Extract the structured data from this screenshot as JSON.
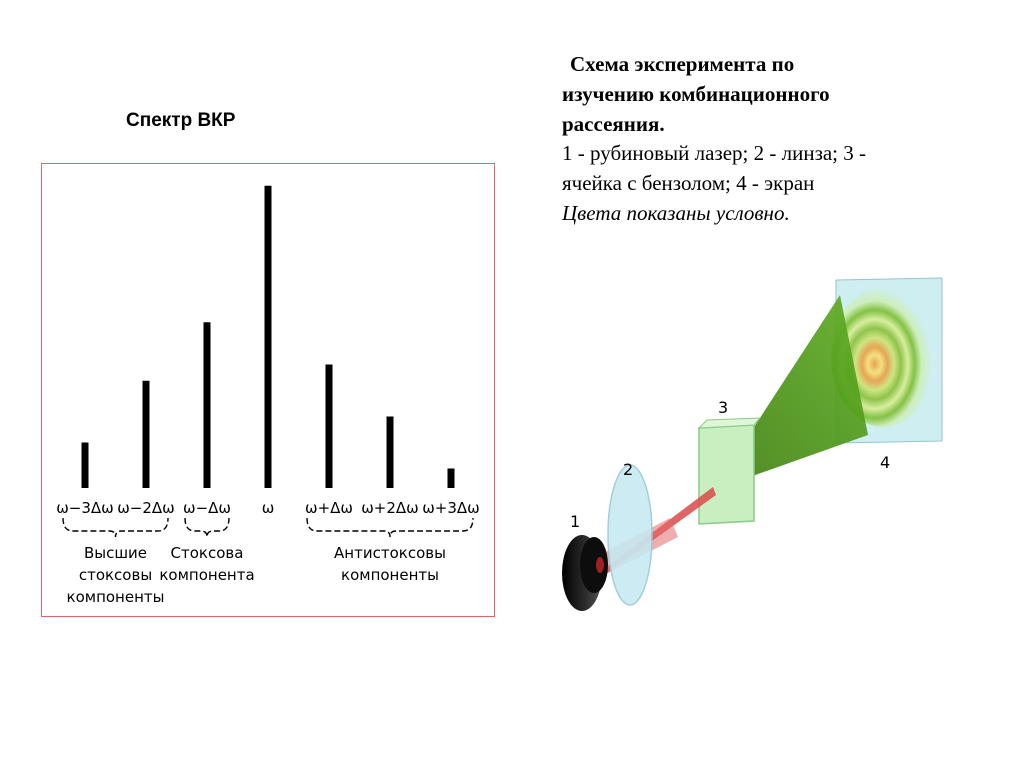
{
  "spectrum": {
    "title": "Спектр  ВКР",
    "chart_data": {
      "type": "bar",
      "categories": [
        "ω−3Δω",
        "ω−2Δω",
        "ω−Δω",
        "ω",
        "ω+Δω",
        "ω+2Δω",
        "ω+3Δω"
      ],
      "values": [
        14,
        33,
        51,
        93,
        38,
        22,
        6
      ],
      "ylim": [
        0,
        100
      ],
      "groups": [
        {
          "label_lines": [
            "Высшие",
            "стоксовы",
            "компоненты"
          ],
          "span": [
            0,
            1
          ]
        },
        {
          "label_lines": [
            "Стоксова",
            "компонента"
          ],
          "span": [
            2,
            2
          ]
        },
        {
          "label_lines": [
            "Антистоксовы",
            "компоненты"
          ],
          "span": [
            4,
            6
          ]
        }
      ]
    }
  },
  "caption": {
    "heading_line1": "Схема эксперимента по",
    "heading_line2": "изучению комбинационного",
    "heading_line3": "рассеяния.",
    "legend_line1": "1 - рубиновый лазер; 2 - линза; 3 -",
    "legend_line2": "ячейка с бензолом; 4 - экран",
    "note": "Цвета показаны условно."
  },
  "scheme": {
    "labels": {
      "laser": "1",
      "lens": "2",
      "cell": "3",
      "screen": "4"
    },
    "colors": {
      "laser_beam": "#d94a4a",
      "scattered_cone": "#4f9a1a",
      "cell": "#c9efc0",
      "screen": "#cfeef2",
      "lens": "#c7e9f2",
      "laser_body": "#1a1a1a"
    }
  }
}
